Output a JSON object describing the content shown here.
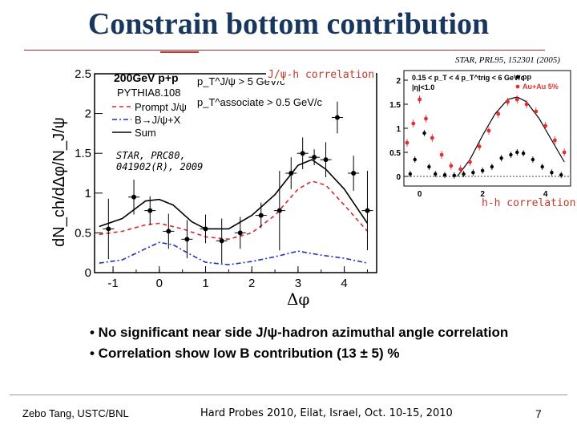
{
  "title": "Constrain bottom contribution",
  "ref_right": "STAR, PRL95, 152301 (2005)",
  "ref_left": [
    "STAR, PRC80,",
    "041902(R), 2009"
  ],
  "jpsi_label": "J/ψ-h correlation",
  "hh_label": "h-h correlation",
  "bullets": [
    "• No significant near side J/ψ-hadron azimuthal angle correlation",
    "• Correlation show low B contribution (13 ± 5) %"
  ],
  "footer": {
    "author": "Zebo Tang, USTC/BNL",
    "conference": "Hard Probes 2010, Eilat, Israel, Oct. 10-15, 2010",
    "page": "7"
  },
  "colors": {
    "title": "#17375e",
    "prompt": "#d62728",
    "bjpsi": "#1f2fbf",
    "sum": "#000000",
    "pp": "#000000",
    "auau": "#e03030"
  },
  "chart_data": [
    {
      "type": "line",
      "ylabel": "dN_ch/dΔφ/N_J/ψ",
      "xlabel": "Δφ",
      "xlim": [
        -1.4,
        4.7
      ],
      "ylim": [
        0,
        2.5
      ],
      "xticks": [
        -1,
        0,
        1,
        2,
        3,
        4
      ],
      "yticks": [
        0,
        0.5,
        1,
        1.5,
        2,
        2.5
      ],
      "ytick_labels": [
        "0",
        "0.5",
        "1",
        "1.5",
        "2",
        "2.5"
      ],
      "legend": {
        "header": "200GeV p+p",
        "subheader": "PYTHIA8.108",
        "items": [
          "Prompt J/ψ",
          "B→J/ψ+X",
          "Sum"
        ]
      },
      "cuts": [
        "p_T^J/ψ > 5 GeV/c",
        "p_T^associate > 0.5 GeV/c"
      ],
      "data_points": {
        "x": [
          -1.1,
          -0.55,
          -0.2,
          0.2,
          0.6,
          1.0,
          1.35,
          1.75,
          2.2,
          2.6,
          2.85,
          3.1,
          3.35,
          3.6,
          3.85,
          4.2,
          4.5
        ],
        "y": [
          0.55,
          0.95,
          0.78,
          0.52,
          0.42,
          0.55,
          0.4,
          0.5,
          0.72,
          0.78,
          1.25,
          1.5,
          1.45,
          1.42,
          1.95,
          1.25,
          0.78
        ],
        "yerr": [
          0.38,
          0.22,
          0.18,
          0.22,
          0.24,
          0.18,
          0.28,
          0.2,
          0.16,
          0.5,
          0.2,
          0.2,
          0.1,
          0.22,
          0.2,
          0.22,
          0.5
        ]
      },
      "series": [
        {
          "name": "Prompt J/ψ",
          "style": "dashed",
          "x": [
            -1.3,
            -0.8,
            -0.3,
            0.0,
            0.5,
            1.0,
            1.5,
            2.0,
            2.5,
            3.0,
            3.3,
            3.6,
            4.0,
            4.5
          ],
          "y": [
            0.48,
            0.52,
            0.6,
            0.62,
            0.55,
            0.45,
            0.42,
            0.5,
            0.72,
            1.05,
            1.15,
            1.1,
            0.85,
            0.52
          ]
        },
        {
          "name": "B→J/ψ+X",
          "style": "dashdot",
          "x": [
            -1.3,
            -0.8,
            -0.3,
            0.0,
            0.3,
            0.7,
            1.0,
            1.5,
            2.0,
            2.5,
            3.0,
            3.5,
            4.0,
            4.5
          ],
          "y": [
            0.12,
            0.16,
            0.3,
            0.38,
            0.35,
            0.22,
            0.13,
            0.1,
            0.14,
            0.2,
            0.27,
            0.22,
            0.18,
            0.12
          ]
        },
        {
          "name": "Sum",
          "style": "solid",
          "x": [
            -1.3,
            -0.8,
            -0.3,
            0.0,
            0.3,
            0.7,
            1.0,
            1.5,
            2.0,
            2.5,
            3.0,
            3.3,
            3.6,
            4.0,
            4.5
          ],
          "y": [
            0.58,
            0.68,
            0.9,
            0.92,
            0.85,
            0.64,
            0.55,
            0.55,
            0.72,
            0.98,
            1.35,
            1.42,
            1.3,
            1.05,
            0.62
          ]
        }
      ]
    },
    {
      "type": "scatter",
      "xlim": [
        -0.5,
        4.8
      ],
      "ylim": [
        -0.2,
        2.2
      ],
      "xticks": [
        0,
        2,
        4
      ],
      "yticks": [
        0,
        0.5,
        1,
        1.5,
        2
      ],
      "ytick_labels": [
        "0",
        "0.5",
        "1",
        "1.5",
        "2"
      ],
      "cuts": [
        "0.15 < p_T < 4 p_T^trig < 6 GeV/c",
        "|η|<1.0"
      ],
      "legend": [
        "pp",
        "Au+Au 5%"
      ],
      "series": [
        {
          "name": "pp",
          "x": [
            -0.3,
            -0.15,
            0.0,
            0.15,
            0.3,
            0.5,
            0.8,
            1.1,
            1.4,
            1.7,
            2.0,
            2.3,
            2.6,
            2.9,
            3.1,
            3.3,
            3.6,
            3.9,
            4.2,
            4.5
          ],
          "y": [
            0.05,
            0.35,
            1.6,
            0.9,
            0.2,
            0.05,
            0.03,
            0.02,
            0.05,
            0.08,
            0.12,
            0.2,
            0.38,
            0.45,
            0.5,
            0.48,
            0.35,
            0.2,
            0.08,
            0.03
          ]
        },
        {
          "name": "Au+Au 5%",
          "x": [
            -0.4,
            -0.2,
            0.0,
            0.2,
            0.4,
            0.7,
            1.0,
            1.3,
            1.6,
            1.9,
            2.2,
            2.5,
            2.8,
            3.1,
            3.4,
            3.7,
            4.0,
            4.3,
            4.6
          ],
          "y": [
            0.7,
            1.1,
            1.6,
            1.2,
            0.8,
            0.45,
            0.22,
            0.15,
            0.3,
            0.62,
            0.95,
            1.3,
            1.55,
            1.6,
            1.5,
            1.35,
            1.05,
            0.75,
            0.5
          ]
        },
        {
          "name": "",
          "style": "solid",
          "x": [
            1.2,
            1.6,
            2.0,
            2.4,
            2.8,
            3.1,
            3.4,
            3.8,
            4.2,
            4.6
          ],
          "y": [
            0.0,
            0.35,
            0.85,
            1.3,
            1.6,
            1.65,
            1.55,
            1.2,
            0.75,
            0.3
          ]
        }
      ]
    }
  ]
}
